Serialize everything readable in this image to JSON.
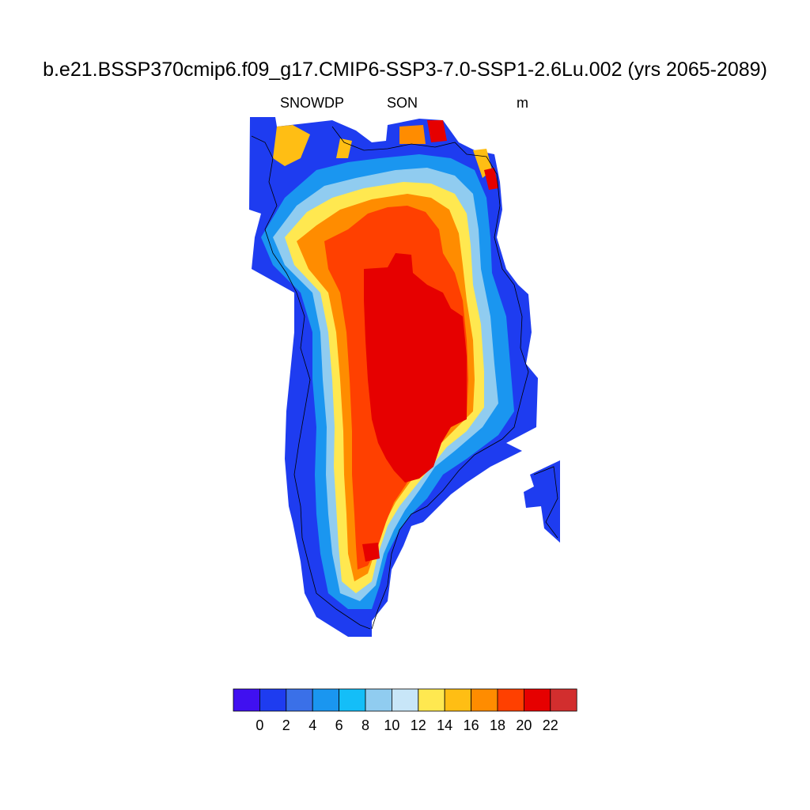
{
  "title": "b.e21.BSSP370cmip6.f09_g17.CMIP6-SSP3-7.0-SSP1-2.6Lu.002 (yrs 2065-2089)",
  "variable": "SNOWDP",
  "season": "SON",
  "units": "m",
  "colorbar": {
    "colors": [
      "#4010f0",
      "#1e3cf0",
      "#3a70e8",
      "#1a96f0",
      "#14bef8",
      "#90ccf0",
      "#c8e6f8",
      "#ffe850",
      "#ffbe14",
      "#ff8c00",
      "#ff4000",
      "#e60000",
      "#d22e2e"
    ],
    "labels": [
      "0",
      "2",
      "4",
      "6",
      "8",
      "10",
      "12",
      "14",
      "16",
      "18",
      "20",
      "22"
    ]
  }
}
